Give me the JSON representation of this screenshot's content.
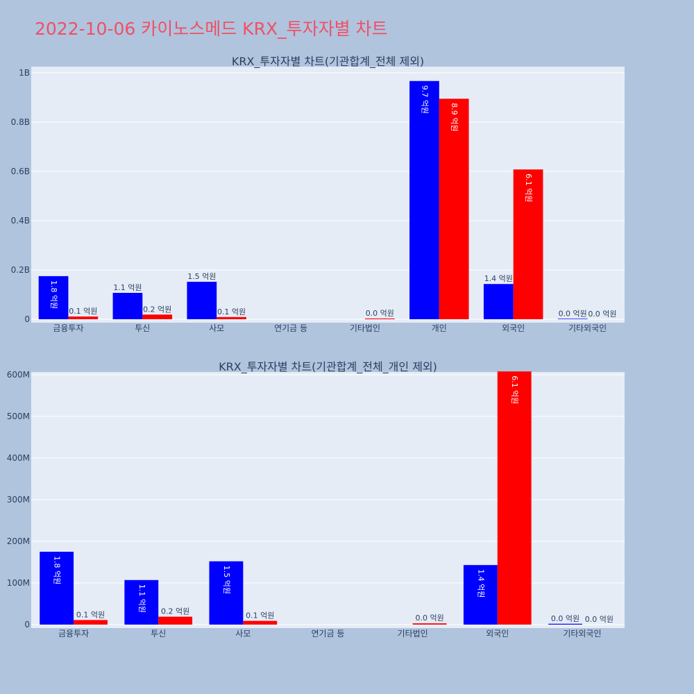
{
  "page": {
    "title": "2022-10-06 카이노스메드 KRX_투자자별 차트"
  },
  "colors": {
    "buy": "#0000ff",
    "sell": "#ff0000",
    "plot_bg": "#e5ecf6",
    "page_bg": "#b0c4de"
  },
  "chart_data": [
    {
      "type": "bar",
      "title": "KRX_투자자별 차트(기관합계_전체 제외)",
      "categories": [
        "금융투자",
        "투신",
        "사모",
        "연기금 등",
        "기타법인",
        "개인",
        "외국인",
        "기타외국인"
      ],
      "series": [
        {
          "color": "#0000ff",
          "values": [
            175000000,
            107000000,
            152000000,
            0,
            0,
            967000000,
            143000000,
            2000000
          ],
          "labels": [
            "1.8 억원",
            "1.1 억원",
            "1.5 억원",
            "",
            "",
            "9.7 억원",
            "1.4 억원",
            "0.0 억원"
          ]
        },
        {
          "color": "#ff0000",
          "values": [
            11000000,
            19000000,
            9000000,
            0,
            3000000,
            895000000,
            608000000,
            0
          ],
          "labels": [
            "0.1 억원",
            "0.2 억원",
            "0.1 억원",
            "",
            "0.0 억원",
            "8.9 억원",
            "6.1 억원",
            "0.0 억원"
          ]
        }
      ],
      "ylim": [
        0,
        1000000000
      ],
      "yticks": [
        0,
        200000000,
        400000000,
        600000000,
        800000000,
        1000000000
      ],
      "ytick_labels": [
        "0",
        "0.2B",
        "0.4B",
        "0.6B",
        "0.8B",
        "1B"
      ],
      "grid": true
    },
    {
      "type": "bar",
      "title": "KRX_투자자별 차트(기관합계_전체_개인 제외)",
      "categories": [
        "금융투자",
        "투신",
        "사모",
        "연기금 등",
        "기타법인",
        "외국인",
        "기타외국인"
      ],
      "series": [
        {
          "color": "#0000ff",
          "values": [
            175000000,
            107000000,
            152000000,
            0,
            0,
            143000000,
            2000000
          ],
          "labels": [
            "1.8 억원",
            "1.1 억원",
            "1.5 억원",
            "",
            "",
            "1.4 억원",
            "0.0 억원"
          ]
        },
        {
          "color": "#ff0000",
          "values": [
            11000000,
            19000000,
            9000000,
            0,
            3000000,
            608000000,
            0
          ],
          "labels": [
            "0.1 억원",
            "0.2 억원",
            "0.1 억원",
            "",
            "0.0 억원",
            "6.1 억원",
            "0.0 억원"
          ]
        }
      ],
      "ylim": [
        0,
        640000000
      ],
      "yticks": [
        0,
        100000000,
        200000000,
        300000000,
        400000000,
        500000000,
        600000000
      ],
      "ytick_labels": [
        "0",
        "100M",
        "200M",
        "300M",
        "400M",
        "500M",
        "600M"
      ],
      "grid": true
    }
  ]
}
